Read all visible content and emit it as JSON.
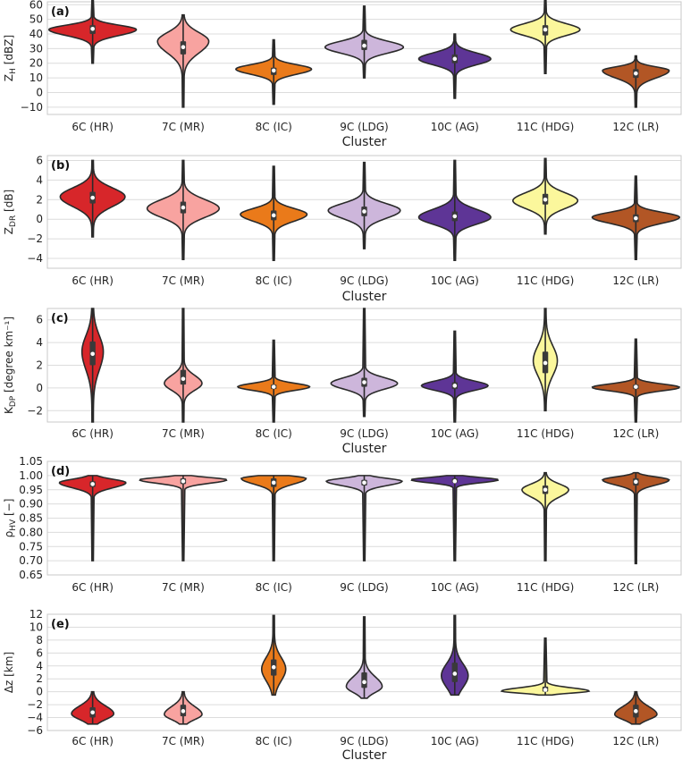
{
  "chart_data": [
    {
      "type": "violin",
      "panel_label": "(a)",
      "ylabel": "Z_H [dBZ]",
      "ylabel_main": "Z",
      "ylabel_sub": "H",
      "ylabel_unit": " [dBZ]",
      "xlabel": "Cluster",
      "ylim": [
        -15,
        62
      ],
      "yticks": [
        -10,
        0,
        10,
        20,
        30,
        40,
        50,
        60
      ],
      "categories": [
        "6C (HR)",
        "7C (MR)",
        "8C (IC)",
        "9C (LDG)",
        "10C (AG)",
        "11C (HDG)",
        "12C (LR)"
      ],
      "series": [
        {
          "min": 20,
          "max": 63,
          "q1": 40,
          "median": 43.5,
          "q3": 46,
          "peak": 43,
          "peak_width": 0.95,
          "spread_lo": 4,
          "spread_hi": 3
        },
        {
          "min": -10,
          "max": 53,
          "q1": 26,
          "median": 31,
          "q3": 35,
          "peak": 35,
          "peak_width": 0.55,
          "spread_lo": 8,
          "spread_hi": 6
        },
        {
          "min": -8,
          "max": 36,
          "q1": 12,
          "median": 15,
          "q3": 17,
          "peak": 16,
          "peak_width": 0.82,
          "spread_lo": 3.5,
          "spread_hi": 3
        },
        {
          "min": 10,
          "max": 59,
          "q1": 29,
          "median": 32,
          "q3": 36,
          "peak": 31,
          "peak_width": 0.85,
          "spread_lo": 4,
          "spread_hi": 4
        },
        {
          "min": -4,
          "max": 40,
          "q1": 20,
          "median": 23,
          "q3": 26,
          "peak": 23,
          "peak_width": 0.78,
          "spread_lo": 4,
          "spread_hi": 4
        },
        {
          "min": 13,
          "max": 63,
          "q1": 39,
          "median": 43,
          "q3": 46,
          "peak": 43,
          "peak_width": 0.75,
          "spread_lo": 4,
          "spread_hi": 4
        },
        {
          "min": -10,
          "max": 25,
          "q1": 10,
          "median": 13,
          "q3": 16,
          "peak": 15,
          "peak_width": 0.72,
          "spread_lo": 5,
          "spread_hi": 2.5
        }
      ]
    },
    {
      "type": "violin",
      "panel_label": "(b)",
      "ylabel": "Z_DR [dB]",
      "ylabel_main": "Z",
      "ylabel_sub": "DR",
      "ylabel_unit": " [dB]",
      "xlabel": "Cluster",
      "ylim": [
        -5,
        6.5
      ],
      "yticks": [
        -4,
        -2,
        0,
        2,
        4,
        6
      ],
      "categories": [
        "6C (HR)",
        "7C (MR)",
        "8C (IC)",
        "9C (LDG)",
        "10C (AG)",
        "11C (HDG)",
        "12C (LR)"
      ],
      "series": [
        {
          "min": -1.8,
          "max": 6.0,
          "q1": 1.6,
          "median": 2.2,
          "q3": 2.8,
          "peak": 2.3,
          "peak_width": 0.7,
          "spread_lo": 1.0,
          "spread_hi": 0.9
        },
        {
          "min": -4.1,
          "max": 6.0,
          "q1": 0.6,
          "median": 1.2,
          "q3": 1.8,
          "peak": 1.1,
          "peak_width": 0.78,
          "spread_lo": 0.9,
          "spread_hi": 0.9
        },
        {
          "min": -4.2,
          "max": 5.4,
          "q1": -0.1,
          "median": 0.4,
          "q3": 0.9,
          "peak": 0.5,
          "peak_width": 0.72,
          "spread_lo": 0.7,
          "spread_hi": 0.6
        },
        {
          "min": -3.0,
          "max": 5.8,
          "q1": 0.3,
          "median": 0.8,
          "q3": 1.3,
          "peak": 0.9,
          "peak_width": 0.78,
          "spread_lo": 0.8,
          "spread_hi": 0.7
        },
        {
          "min": -4.2,
          "max": 6.0,
          "q1": -0.2,
          "median": 0.3,
          "q3": 0.8,
          "peak": 0.2,
          "peak_width": 0.78,
          "spread_lo": 0.7,
          "spread_hi": 0.8
        },
        {
          "min": -1.5,
          "max": 6.2,
          "q1": 1.5,
          "median": 2.0,
          "q3": 2.6,
          "peak": 1.9,
          "peak_width": 0.7,
          "spread_lo": 0.8,
          "spread_hi": 0.8
        },
        {
          "min": -4.1,
          "max": 4.4,
          "q1": -0.3,
          "median": 0.1,
          "q3": 0.5,
          "peak": 0.2,
          "peak_width": 0.95,
          "spread_lo": 0.6,
          "spread_hi": 0.5
        }
      ]
    },
    {
      "type": "violin",
      "panel_label": "(c)",
      "ylabel": "K_DP [degree km⁻¹]",
      "ylabel_main": "K",
      "ylabel_sub": "DP",
      "ylabel_unit": " [degree km⁻¹]",
      "xlabel": "Cluster",
      "ylim": [
        -3,
        7
      ],
      "yticks": [
        -2,
        0,
        2,
        4,
        6
      ],
      "categories": [
        "6C (HR)",
        "7C (MR)",
        "8C (IC)",
        "9C (LDG)",
        "10C (AG)",
        "11C (HDG)",
        "12C (LR)"
      ],
      "series": [
        {
          "min": -3,
          "max": 7,
          "q1": 2.0,
          "median": 3.0,
          "q3": 4.1,
          "peak": 3.2,
          "peak_width": 0.22,
          "spread_lo": 1.6,
          "spread_hi": 1.4
        },
        {
          "min": -3,
          "max": 7,
          "q1": 0.3,
          "median": 0.8,
          "q3": 1.6,
          "peak": 0.4,
          "peak_width": 0.4,
          "spread_lo": 0.6,
          "spread_hi": 0.7
        },
        {
          "min": -3,
          "max": 4.2,
          "q1": -0.1,
          "median": 0.1,
          "q3": 0.3,
          "peak": 0.1,
          "peak_width": 0.78,
          "spread_lo": 0.3,
          "spread_hi": 0.3
        },
        {
          "min": -2.5,
          "max": 7,
          "q1": 0.1,
          "median": 0.5,
          "q3": 0.9,
          "peak": 0.4,
          "peak_width": 0.72,
          "spread_lo": 0.5,
          "spread_hi": 0.5
        },
        {
          "min": -3,
          "max": 5.0,
          "q1": -0.1,
          "median": 0.2,
          "q3": 0.5,
          "peak": 0.2,
          "peak_width": 0.72,
          "spread_lo": 0.4,
          "spread_hi": 0.4
        },
        {
          "min": -2,
          "max": 7,
          "q1": 1.3,
          "median": 2.2,
          "q3": 3.2,
          "peak": 2.4,
          "peak_width": 0.25,
          "spread_lo": 1.3,
          "spread_hi": 1.3
        },
        {
          "min": -3,
          "max": 4.3,
          "q1": -0.1,
          "median": 0.1,
          "q3": 0.3,
          "peak": 0.05,
          "peak_width": 0.95,
          "spread_lo": 0.3,
          "spread_hi": 0.3
        }
      ]
    },
    {
      "type": "violin",
      "panel_label": "(d)",
      "ylabel": "ρ_HV [−]",
      "ylabel_main": "ρ",
      "ylabel_sub": "HV",
      "ylabel_unit": " [−]",
      "xlabel": "",
      "ylim": [
        0.65,
        1.05
      ],
      "yticks": [
        0.65,
        0.7,
        0.75,
        0.8,
        0.85,
        0.9,
        0.95,
        1.0,
        1.05
      ],
      "ytick_decimals": 2,
      "categories": [
        "6C (HR)",
        "7C (MR)",
        "8C (IC)",
        "9C (LDG)",
        "10C (AG)",
        "11C (HDG)",
        "12C (LR)"
      ],
      "series": [
        {
          "min": 0.7,
          "max": 1.0,
          "q1": 0.96,
          "median": 0.97,
          "q3": 0.98,
          "peak": 0.975,
          "peak_width": 0.72,
          "spread_lo": 0.018,
          "spread_hi": 0.012
        },
        {
          "min": 0.7,
          "max": 1.0,
          "q1": 0.97,
          "median": 0.98,
          "q3": 0.99,
          "peak": 0.985,
          "peak_width": 0.95,
          "spread_lo": 0.012,
          "spread_hi": 0.008
        },
        {
          "min": 0.7,
          "max": 1.0,
          "q1": 0.96,
          "median": 0.975,
          "q3": 0.99,
          "peak": 0.99,
          "peak_width": 0.7,
          "spread_lo": 0.02,
          "spread_hi": 0.008
        },
        {
          "min": 0.7,
          "max": 1.0,
          "q1": 0.965,
          "median": 0.975,
          "q3": 0.985,
          "peak": 0.98,
          "peak_width": 0.82,
          "spread_lo": 0.015,
          "spread_hi": 0.01
        },
        {
          "min": 0.7,
          "max": 1.0,
          "q1": 0.975,
          "median": 0.98,
          "q3": 0.99,
          "peak": 0.985,
          "peak_width": 0.95,
          "spread_lo": 0.01,
          "spread_hi": 0.008
        },
        {
          "min": 0.7,
          "max": 1.01,
          "q1": 0.935,
          "median": 0.95,
          "q3": 0.965,
          "peak": 0.95,
          "peak_width": 0.5,
          "spread_lo": 0.025,
          "spread_hi": 0.02
        },
        {
          "min": 0.69,
          "max": 1.01,
          "q1": 0.965,
          "median": 0.978,
          "q3": 0.99,
          "peak": 0.985,
          "peak_width": 0.72,
          "spread_lo": 0.018,
          "spread_hi": 0.01
        }
      ]
    },
    {
      "type": "violin",
      "panel_label": "(e)",
      "ylabel": "Δz [km]",
      "ylabel_main": "Δz",
      "ylabel_sub": "",
      "ylabel_unit": " [km]",
      "xlabel": "Cluster",
      "ylim": [
        -6,
        12
      ],
      "yticks": [
        -6,
        -4,
        -2,
        0,
        2,
        4,
        6,
        8,
        10,
        12
      ],
      "categories": [
        "6C (HR)",
        "7C (MR)",
        "8C (IC)",
        "9C (LDG)",
        "10C (AG)",
        "11C (HDG)",
        "12C (LR)"
      ],
      "series": [
        {
          "min": -5,
          "max": 0,
          "q1": -4,
          "median": -3.2,
          "q3": -2.4,
          "peak": -3.4,
          "peak_width": 0.45,
          "spread_lo": 0.9,
          "spread_hi": 1.2
        },
        {
          "min": -5,
          "max": 0,
          "q1": -3.8,
          "median": -3.0,
          "q3": -2.0,
          "peak": -3.5,
          "peak_width": 0.4,
          "spread_lo": 0.8,
          "spread_hi": 1.2
        },
        {
          "min": -0.5,
          "max": 11.8,
          "q1": 2.5,
          "median": 3.8,
          "q3": 5.0,
          "peak": 3.5,
          "peak_width": 0.25,
          "spread_lo": 1.8,
          "spread_hi": 1.8
        },
        {
          "min": -1,
          "max": 11.6,
          "q1": 0.6,
          "median": 1.5,
          "q3": 3.0,
          "peak": 0.8,
          "peak_width": 0.38,
          "spread_lo": 0.9,
          "spread_hi": 1.5
        },
        {
          "min": -0.5,
          "max": 11.8,
          "q1": 1.5,
          "median": 2.8,
          "q3": 4.5,
          "peak": 2.5,
          "peak_width": 0.28,
          "spread_lo": 1.8,
          "spread_hi": 1.8
        },
        {
          "min": -0.5,
          "max": 8.3,
          "q1": 0,
          "median": 0.3,
          "q3": 0.8,
          "peak": 0.1,
          "peak_width": 0.95,
          "spread_lo": 0.3,
          "spread_hi": 0.5
        },
        {
          "min": -5,
          "max": 0,
          "q1": -4,
          "median": -3.0,
          "q3": -2.0,
          "peak": -3.5,
          "peak_width": 0.45,
          "spread_lo": 0.8,
          "spread_hi": 1.2
        }
      ]
    }
  ],
  "colors": [
    "#d7262a",
    "#f8a3a0",
    "#ea7a1a",
    "#cdb6db",
    "#5e3596",
    "#fbf79c",
    "#b25625"
  ]
}
